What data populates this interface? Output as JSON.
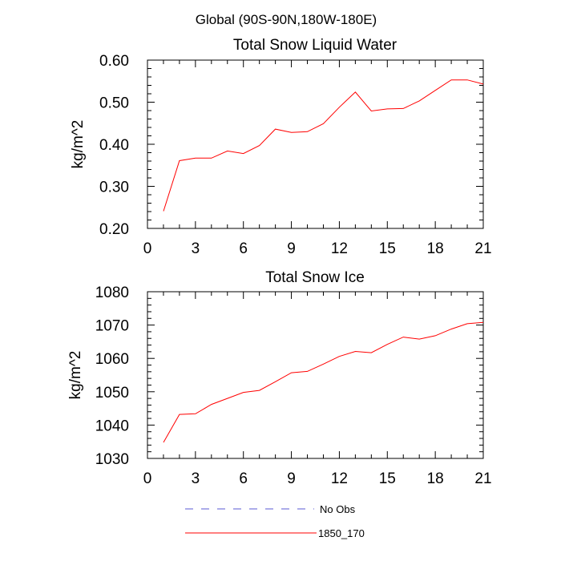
{
  "suptitle": "Global (90S-90N,180W-180E)",
  "colors": {
    "model_line": "#ff0000",
    "obs_line": "#5a5ad6",
    "axis": "#000000"
  },
  "legend": {
    "entries": [
      {
        "label": "No Obs",
        "style": "dashed",
        "color": "#5a5ad6"
      },
      {
        "label": "1850_170",
        "style": "solid",
        "color": "#ff0000"
      }
    ]
  },
  "chart_data": [
    {
      "type": "line",
      "title": "Total Snow Liquid Water",
      "xlabel": "",
      "ylabel": "kg/m^2",
      "xlim": [
        0,
        21
      ],
      "ylim": [
        0.2,
        0.6
      ],
      "xticks": [
        0,
        3,
        6,
        9,
        12,
        15,
        18,
        21
      ],
      "yticks": [
        0.2,
        0.3,
        0.4,
        0.5,
        0.6
      ],
      "ytick_labels": [
        "0.20",
        "0.30",
        "0.40",
        "0.50",
        "0.60"
      ],
      "series": [
        {
          "name": "1850_170",
          "x": [
            1,
            2,
            3,
            4,
            5,
            6,
            7,
            8,
            9,
            10,
            11,
            12,
            13,
            14,
            15,
            16,
            17,
            18,
            19,
            20,
            21
          ],
          "values": [
            0.241,
            0.361,
            0.367,
            0.367,
            0.384,
            0.378,
            0.397,
            0.436,
            0.428,
            0.43,
            0.449,
            0.488,
            0.524,
            0.479,
            0.484,
            0.485,
            0.503,
            0.528,
            0.553,
            0.553,
            0.543
          ]
        }
      ]
    },
    {
      "type": "line",
      "title": "Total Snow Ice",
      "xlabel": "",
      "ylabel": "kg/m^2",
      "xlim": [
        0,
        21
      ],
      "ylim": [
        1030,
        1080
      ],
      "xticks": [
        0,
        3,
        6,
        9,
        12,
        15,
        18,
        21
      ],
      "yticks": [
        1030,
        1040,
        1050,
        1060,
        1070,
        1080
      ],
      "ytick_labels": [
        "1030",
        "1040",
        "1050",
        "1060",
        "1070",
        "1080"
      ],
      "series": [
        {
          "name": "1850_170",
          "x": [
            1,
            2,
            3,
            4,
            5,
            6,
            7,
            8,
            9,
            10,
            11,
            12,
            13,
            14,
            15,
            16,
            17,
            18,
            19,
            20,
            21
          ],
          "values": [
            1034.8,
            1043.2,
            1043.4,
            1046.2,
            1048.0,
            1049.8,
            1050.4,
            1053.0,
            1055.7,
            1056.1,
            1058.3,
            1060.6,
            1062.1,
            1061.7,
            1064.2,
            1066.4,
            1065.8,
            1066.8,
            1068.8,
            1070.4,
            1070.8
          ]
        }
      ]
    }
  ]
}
